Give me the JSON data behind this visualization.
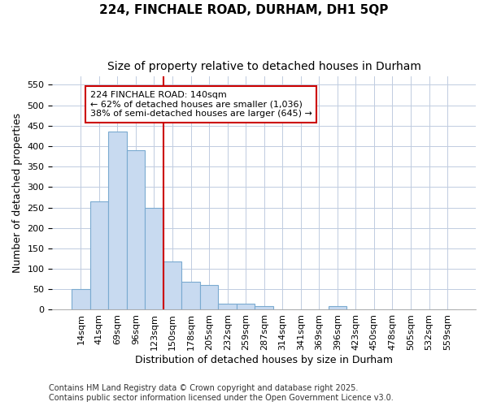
{
  "title_line1": "224, FINCHALE ROAD, DURHAM, DH1 5QP",
  "title_line2": "Size of property relative to detached houses in Durham",
  "xlabel": "Distribution of detached houses by size in Durham",
  "ylabel": "Number of detached properties",
  "categories": [
    "14sqm",
    "41sqm",
    "69sqm",
    "96sqm",
    "123sqm",
    "150sqm",
    "178sqm",
    "205sqm",
    "232sqm",
    "259sqm",
    "287sqm",
    "314sqm",
    "341sqm",
    "369sqm",
    "396sqm",
    "423sqm",
    "450sqm",
    "478sqm",
    "505sqm",
    "532sqm",
    "559sqm"
  ],
  "bar_heights": [
    50,
    265,
    435,
    390,
    250,
    118,
    68,
    60,
    14,
    14,
    8,
    0,
    0,
    0,
    8,
    0,
    0,
    0,
    0,
    0,
    0
  ],
  "bar_color": "#c8daf0",
  "bar_edge_color": "#7aaad0",
  "vline_color": "#cc0000",
  "annotation_text": "224 FINCHALE ROAD: 140sqm\n← 62% of detached houses are smaller (1,036)\n38% of semi-detached houses are larger (645) →",
  "annotation_box_color": "#ffffff",
  "annotation_box_edge": "#cc0000",
  "ylim": [
    0,
    570
  ],
  "yticks": [
    0,
    50,
    100,
    150,
    200,
    250,
    300,
    350,
    400,
    450,
    500,
    550
  ],
  "background_color": "#ffffff",
  "plot_bg_color": "#ffffff",
  "grid_color": "#c0cce0",
  "footer_line1": "Contains HM Land Registry data © Crown copyright and database right 2025.",
  "footer_line2": "Contains public sector information licensed under the Open Government Licence v3.0.",
  "title_fontsize": 11,
  "subtitle_fontsize": 10,
  "tick_fontsize": 8,
  "axis_label_fontsize": 9,
  "annotation_fontsize": 8,
  "footer_fontsize": 7
}
